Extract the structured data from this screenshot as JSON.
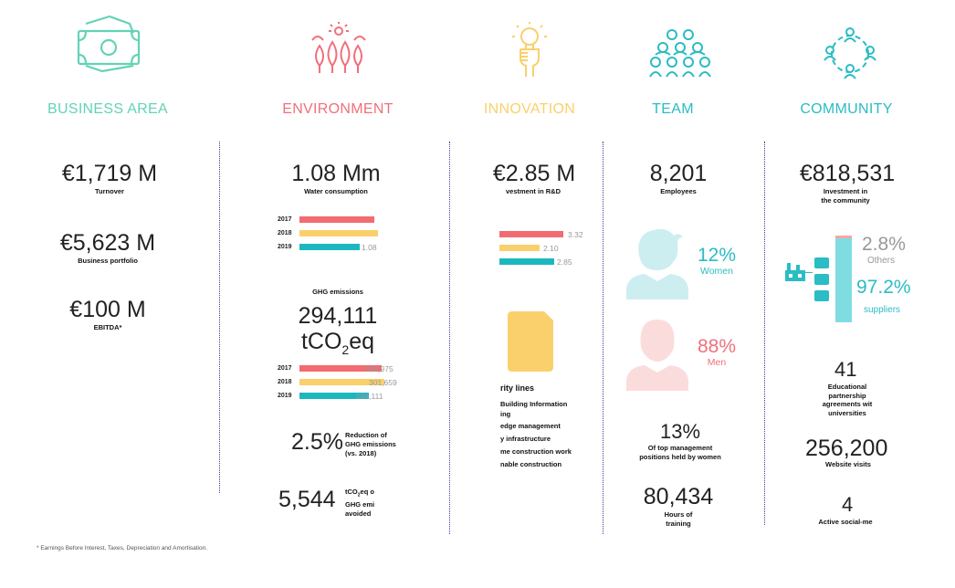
{
  "colors": {
    "business": "#63d3b6",
    "environment": "#f0707a",
    "innovation": "#fad06c",
    "team": "#2bbcc4",
    "community": "#2bbcc4",
    "bar_red": "#f26b70",
    "bar_yellow": "#fad06c",
    "bar_teal": "#1cb8bf",
    "divider": "#3a3f9a"
  },
  "icons": {
    "business": "banknote-icon",
    "environment": "trees-icon",
    "innovation": "lightbulb-hand-icon",
    "team": "people-group-icon",
    "community": "people-circle-icon"
  },
  "business": {
    "heading": "BUSINESS AREA",
    "stats": [
      {
        "value": "€1,719 M",
        "label": "Turnover"
      },
      {
        "value": "€5,623 M",
        "label": "Business portfolio"
      },
      {
        "value": "€100 M",
        "label": "EBITDA*"
      }
    ]
  },
  "environment": {
    "heading": "ENVIRONMENT",
    "water": {
      "value": "1.08 Mm",
      "label": "Water consumption",
      "bars": [
        {
          "year": "2017",
          "value": null,
          "fraction": 0.78
        },
        {
          "year": "2018",
          "value": null,
          "fraction": 0.82
        },
        {
          "year": "2019",
          "value": "1.08",
          "fraction": 0.63
        }
      ]
    },
    "ghg": {
      "title": "GHG emissions",
      "value": "294,111",
      "unit_prefix": "tCO",
      "unit_sub": "2",
      "unit_suffix": "eq",
      "bars": [
        {
          "year": "2017",
          "value": "300,975",
          "fraction": 0.95
        },
        {
          "year": "2018",
          "value": "301,659",
          "fraction": 0.98
        },
        {
          "year": "2019",
          "value": "294,111",
          "fraction": 0.8
        }
      ]
    },
    "reduction": {
      "value": "2.5%",
      "label_lines": [
        "Reduction of",
        "GHG emissions",
        "(vs.  2018)"
      ]
    },
    "avoided": {
      "value": "5,544",
      "label_prefix": "tCO",
      "label_sub": "2",
      "label_suffix": "eq o",
      "label_lines": [
        "GHG emi",
        "avoided"
      ]
    }
  },
  "innovation": {
    "heading": "INNOVATION",
    "investment": {
      "value": "€2.85 M",
      "label": "vestment in R&D"
    },
    "bars": [
      {
        "value": "3.32",
        "fraction": 1.0
      },
      {
        "value": "2.10",
        "fraction": 0.63
      },
      {
        "value": "2.85",
        "fraction": 0.86
      }
    ],
    "priority": {
      "title": "rity lines",
      "items": [
        "Building Information",
        "ing",
        "edge management",
        "y infrastructure",
        "me construction work",
        "nable construction"
      ]
    }
  },
  "team": {
    "heading": "TEAM",
    "employees": {
      "value": "8,201",
      "label": "Employees"
    },
    "women": {
      "value": "12%",
      "label": "Women",
      "fraction": 0.12
    },
    "men": {
      "value": "88%",
      "label": "Men",
      "fraction": 0.88
    },
    "management": {
      "value": "13%",
      "label_lines": [
        "Of top management",
        "positions held by women"
      ]
    },
    "training": {
      "value": "80,434",
      "label_lines": [
        "Hours of",
        "training"
      ]
    }
  },
  "community": {
    "heading": "COMMUNITY",
    "investment": {
      "value": "€818,531",
      "label_lines": [
        "Investment in",
        "the community"
      ]
    },
    "others": {
      "value": "2.8%",
      "label": "Others",
      "fraction": 0.028
    },
    "suppliers": {
      "value": "97.2%",
      "label": "suppliers",
      "fraction": 0.972
    },
    "agreements": {
      "value": "41",
      "label_lines": [
        "Educational",
        "partnership",
        "agreements wit",
        "universities"
      ]
    },
    "visits": {
      "value": "256,200",
      "label": "Website visits"
    },
    "social": {
      "value": "4",
      "label": "Active social-me"
    }
  },
  "footnote": "* Earnings Before Interest, Taxes, Depreciation and Amortisation."
}
